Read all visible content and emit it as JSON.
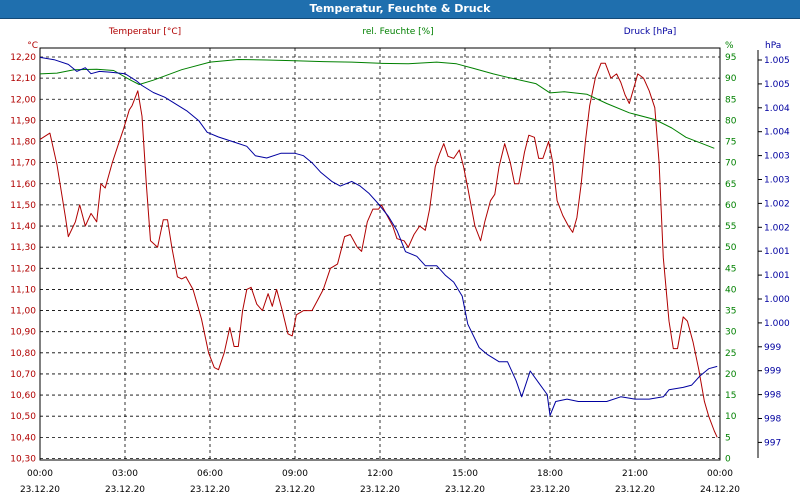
{
  "window": {
    "title": "Temperatur, Feuchte & Druck"
  },
  "chart_data": {
    "type": "line",
    "title": "Temperatur, Feuchte & Druck",
    "colors": {
      "temperature": "#b00000",
      "humidity": "#008000",
      "pressure": "#0000a0",
      "axis_time": "#000000"
    },
    "x": {
      "range": [
        0,
        24
      ],
      "ticks": [
        0,
        3,
        6,
        9,
        12,
        15,
        18,
        21,
        24
      ],
      "tick_times": [
        "00:00",
        "03:00",
        "06:00",
        "09:00",
        "12:00",
        "15:00",
        "18:00",
        "21:00",
        "00:00"
      ],
      "tick_dates": [
        "23.12.20",
        "23.12.20",
        "23.12.20",
        "23.12.20",
        "23.12.20",
        "23.12.20",
        "23.12.20",
        "23.12.20",
        "24.12.20"
      ]
    },
    "axes": {
      "temperature": {
        "label": "Temperatur [°C]",
        "unit": "°C",
        "range": [
          10.3,
          12.3
        ],
        "tick_labels": [
          "12,20",
          "12,10",
          "12,00",
          "11,90",
          "11,80",
          "11,70",
          "11,60",
          "11,50",
          "11,40",
          "11,30",
          "11,20",
          "11,10",
          "11,00",
          "10,90",
          "10,80",
          "10,70",
          "10,60",
          "10,50",
          "10,40",
          "10,30"
        ]
      },
      "humidity": {
        "label": "rel. Feuchte [%]",
        "unit": "%",
        "range": [
          0,
          100
        ],
        "tick_labels": [
          "95",
          "90",
          "85",
          "80",
          "75",
          "70",
          "65",
          "60",
          "55",
          "50",
          "45",
          "40",
          "35",
          "30",
          "25",
          "20",
          "15",
          "10",
          "5",
          "0"
        ]
      },
      "pressure": {
        "label": "Druck [hPa]",
        "unit": "hPa",
        "range": [
          996.6,
          1005.4
        ],
        "tick_labels": [
          "1.005",
          "1.005",
          "1.004",
          "1.004",
          "1.003",
          "1.003",
          "1.002",
          "1.002",
          "1.001",
          "1.001",
          "1.000",
          "1.000",
          "999",
          "999",
          "998",
          "998",
          "997"
        ]
      }
    },
    "series": [
      {
        "name": "Temperatur [°C]",
        "axis": "temperature",
        "points": [
          [
            0,
            11.81
          ],
          [
            0.35,
            11.84
          ],
          [
            0.6,
            11.69
          ],
          [
            0.9,
            11.44
          ],
          [
            1.0,
            11.35
          ],
          [
            1.25,
            11.42
          ],
          [
            1.4,
            11.5
          ],
          [
            1.6,
            11.4
          ],
          [
            1.8,
            11.46
          ],
          [
            2.0,
            11.42
          ],
          [
            2.15,
            11.6
          ],
          [
            2.3,
            11.58
          ],
          [
            2.55,
            11.7
          ],
          [
            2.75,
            11.78
          ],
          [
            2.95,
            11.86
          ],
          [
            3.15,
            11.95
          ],
          [
            3.25,
            11.97
          ],
          [
            3.45,
            12.04
          ],
          [
            3.6,
            11.92
          ],
          [
            3.75,
            11.6
          ],
          [
            3.9,
            11.33
          ],
          [
            4.15,
            11.3
          ],
          [
            4.35,
            11.43
          ],
          [
            4.5,
            11.43
          ],
          [
            4.65,
            11.3
          ],
          [
            4.85,
            11.16
          ],
          [
            5.0,
            11.15
          ],
          [
            5.15,
            11.16
          ],
          [
            5.4,
            11.1
          ],
          [
            5.7,
            10.96
          ],
          [
            5.95,
            10.8
          ],
          [
            6.15,
            10.73
          ],
          [
            6.3,
            10.72
          ],
          [
            6.5,
            10.8
          ],
          [
            6.7,
            10.92
          ],
          [
            6.85,
            10.83
          ],
          [
            7.0,
            10.83
          ],
          [
            7.15,
            11.0
          ],
          [
            7.3,
            11.1
          ],
          [
            7.45,
            11.11
          ],
          [
            7.65,
            11.03
          ],
          [
            7.85,
            11.0
          ],
          [
            8.05,
            11.08
          ],
          [
            8.2,
            11.02
          ],
          [
            8.35,
            11.1
          ],
          [
            8.55,
            11.0
          ],
          [
            8.75,
            10.89
          ],
          [
            8.9,
            10.88
          ],
          [
            9.05,
            10.98
          ],
          [
            9.3,
            11.0
          ],
          [
            9.6,
            11.0
          ],
          [
            9.8,
            11.05
          ],
          [
            10.0,
            11.1
          ],
          [
            10.25,
            11.2
          ],
          [
            10.5,
            11.22
          ],
          [
            10.75,
            11.35
          ],
          [
            10.95,
            11.36
          ],
          [
            11.2,
            11.3
          ],
          [
            11.35,
            11.28
          ],
          [
            11.55,
            11.42
          ],
          [
            11.75,
            11.48
          ],
          [
            11.95,
            11.48
          ],
          [
            12.05,
            11.5
          ],
          [
            12.25,
            11.45
          ],
          [
            12.45,
            11.4
          ],
          [
            12.6,
            11.34
          ],
          [
            12.85,
            11.33
          ],
          [
            13.0,
            11.3
          ],
          [
            13.2,
            11.36
          ],
          [
            13.4,
            11.4
          ],
          [
            13.6,
            11.38
          ],
          [
            13.75,
            11.48
          ],
          [
            13.95,
            11.68
          ],
          [
            14.1,
            11.74
          ],
          [
            14.25,
            11.79
          ],
          [
            14.4,
            11.73
          ],
          [
            14.6,
            11.72
          ],
          [
            14.8,
            11.76
          ],
          [
            14.95,
            11.68
          ],
          [
            15.1,
            11.58
          ],
          [
            15.35,
            11.4
          ],
          [
            15.55,
            11.33
          ],
          [
            15.7,
            11.42
          ],
          [
            15.9,
            11.52
          ],
          [
            16.05,
            11.55
          ],
          [
            16.2,
            11.68
          ],
          [
            16.4,
            11.79
          ],
          [
            16.6,
            11.7
          ],
          [
            16.75,
            11.6
          ],
          [
            16.9,
            11.6
          ],
          [
            17.1,
            11.75
          ],
          [
            17.25,
            11.83
          ],
          [
            17.45,
            11.82
          ],
          [
            17.6,
            11.72
          ],
          [
            17.75,
            11.72
          ],
          [
            17.95,
            11.8
          ],
          [
            18.1,
            11.7
          ],
          [
            18.25,
            11.52
          ],
          [
            18.45,
            11.45
          ],
          [
            18.65,
            11.4
          ],
          [
            18.8,
            11.37
          ],
          [
            18.95,
            11.44
          ],
          [
            19.1,
            11.6
          ],
          [
            19.25,
            11.8
          ],
          [
            19.4,
            11.97
          ],
          [
            19.6,
            12.1
          ],
          [
            19.8,
            12.17
          ],
          [
            19.95,
            12.17
          ],
          [
            20.15,
            12.1
          ],
          [
            20.35,
            12.12
          ],
          [
            20.5,
            12.08
          ],
          [
            20.65,
            12.02
          ],
          [
            20.8,
            11.98
          ],
          [
            20.95,
            12.05
          ],
          [
            21.1,
            12.12
          ],
          [
            21.3,
            12.1
          ],
          [
            21.5,
            12.04
          ],
          [
            21.7,
            11.96
          ],
          [
            21.85,
            11.7
          ],
          [
            22.0,
            11.25
          ],
          [
            22.2,
            10.95
          ],
          [
            22.35,
            10.82
          ],
          [
            22.5,
            10.82
          ],
          [
            22.7,
            10.97
          ],
          [
            22.85,
            10.95
          ],
          [
            23.05,
            10.85
          ],
          [
            23.25,
            10.72
          ],
          [
            23.45,
            10.57
          ],
          [
            23.6,
            10.5
          ],
          [
            23.8,
            10.43
          ],
          [
            23.9,
            10.4
          ]
        ]
      },
      {
        "name": "rel. Feuchte [%]",
        "axis": "humidity",
        "points": [
          [
            0,
            91
          ],
          [
            0.6,
            91.2
          ],
          [
            1.2,
            92
          ],
          [
            2.0,
            92.1
          ],
          [
            2.6,
            91.8
          ],
          [
            3.2,
            89.5
          ],
          [
            3.5,
            88.5
          ],
          [
            4.0,
            89.5
          ],
          [
            5.0,
            92
          ],
          [
            6.0,
            93.8
          ],
          [
            7.0,
            94.4
          ],
          [
            8.0,
            94.3
          ],
          [
            9.0,
            94.1
          ],
          [
            10.0,
            93.9
          ],
          [
            11.0,
            93.8
          ],
          [
            12.0,
            93.5
          ],
          [
            13.0,
            93.4
          ],
          [
            14.0,
            93.8
          ],
          [
            14.7,
            93.4
          ],
          [
            15.3,
            92.3
          ],
          [
            16.0,
            91.0
          ],
          [
            16.5,
            90.2
          ],
          [
            17.5,
            88.7
          ],
          [
            18.0,
            86.5
          ],
          [
            18.5,
            86.8
          ],
          [
            19.3,
            86.2
          ],
          [
            20.0,
            84.0
          ],
          [
            20.8,
            81.8
          ],
          [
            21.7,
            80.2
          ],
          [
            22.3,
            78.2
          ],
          [
            22.8,
            76.0
          ],
          [
            23.3,
            74.7
          ],
          [
            23.8,
            73.4
          ]
        ]
      },
      {
        "name": "Druck [hPa]",
        "axis": "pressure",
        "points": [
          [
            0,
            1005.2
          ],
          [
            0.5,
            1005.15
          ],
          [
            1.0,
            1005.05
          ],
          [
            1.3,
            1004.9
          ],
          [
            1.6,
            1004.98
          ],
          [
            1.8,
            1004.85
          ],
          [
            2.1,
            1004.9
          ],
          [
            2.5,
            1004.88
          ],
          [
            3.0,
            1004.85
          ],
          [
            3.4,
            1004.7
          ],
          [
            3.6,
            1004.6
          ],
          [
            4.0,
            1004.45
          ],
          [
            4.4,
            1004.35
          ],
          [
            4.8,
            1004.2
          ],
          [
            5.2,
            1004.05
          ],
          [
            5.6,
            1003.85
          ],
          [
            5.9,
            1003.6
          ],
          [
            6.3,
            1003.5
          ],
          [
            6.8,
            1003.4
          ],
          [
            7.3,
            1003.3
          ],
          [
            7.6,
            1003.1
          ],
          [
            8.0,
            1003.05
          ],
          [
            8.5,
            1003.15
          ],
          [
            9.0,
            1003.15
          ],
          [
            9.3,
            1003.1
          ],
          [
            9.6,
            1002.95
          ],
          [
            9.9,
            1002.75
          ],
          [
            10.3,
            1002.55
          ],
          [
            10.6,
            1002.45
          ],
          [
            11.0,
            1002.55
          ],
          [
            11.3,
            1002.45
          ],
          [
            11.6,
            1002.3
          ],
          [
            11.9,
            1002.1
          ],
          [
            12.3,
            1001.8
          ],
          [
            12.6,
            1001.5
          ],
          [
            12.9,
            1001.05
          ],
          [
            13.3,
            1000.95
          ],
          [
            13.6,
            1000.75
          ],
          [
            14.0,
            1000.75
          ],
          [
            14.3,
            1000.55
          ],
          [
            14.6,
            1000.4
          ],
          [
            14.9,
            1000.1
          ],
          [
            15.1,
            999.5
          ],
          [
            15.5,
            999.0
          ],
          [
            15.8,
            998.85
          ],
          [
            16.2,
            998.7
          ],
          [
            16.5,
            998.7
          ],
          [
            16.8,
            998.3
          ],
          [
            17.0,
            997.95
          ],
          [
            17.3,
            998.5
          ],
          [
            17.6,
            998.25
          ],
          [
            17.9,
            998.0
          ],
          [
            18.0,
            997.55
          ],
          [
            18.2,
            997.85
          ],
          [
            18.6,
            997.9
          ],
          [
            19.0,
            997.85
          ],
          [
            19.5,
            997.85
          ],
          [
            20.0,
            997.85
          ],
          [
            20.5,
            997.95
          ],
          [
            21.0,
            997.9
          ],
          [
            21.5,
            997.9
          ],
          [
            22.0,
            997.95
          ],
          [
            22.2,
            998.1
          ],
          [
            22.7,
            998.15
          ],
          [
            23.0,
            998.2
          ],
          [
            23.3,
            998.4
          ],
          [
            23.6,
            998.55
          ],
          [
            23.9,
            998.6
          ]
        ]
      }
    ]
  }
}
